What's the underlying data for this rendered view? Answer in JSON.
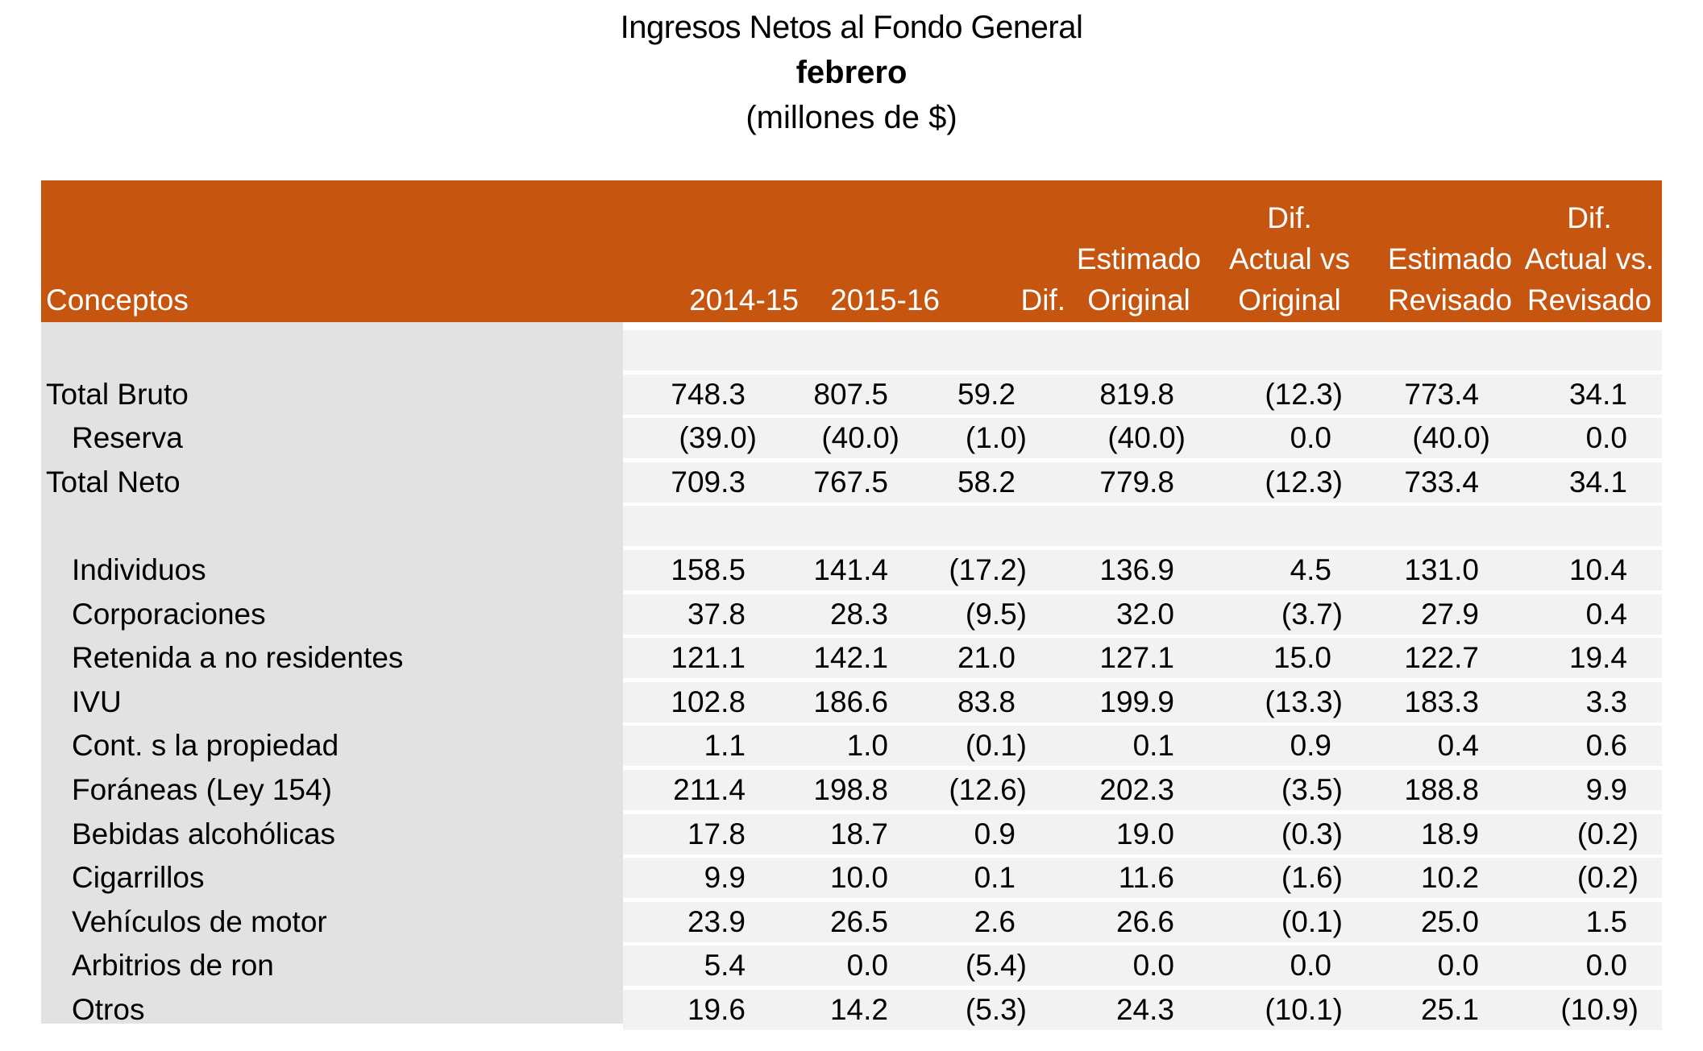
{
  "title": {
    "line1": "Ingresos Netos al Fondo General",
    "line2": "febrero",
    "line3": "(millones de $)"
  },
  "colors": {
    "header_bg": "#c5550f",
    "header_text": "#ffffff",
    "concept_bg": "#e2e2e2",
    "row_stripe": "#f2f2f2"
  },
  "columns": [
    "Conceptos",
    "2014-15",
    "2015-16",
    "Dif.",
    "Estimado\nOriginal",
    "Dif.\nActual vs\nOriginal",
    "Estimado\nRevisado",
    "Dif.\nActual vs.\nRevisado"
  ],
  "rows": [
    {
      "concepto": "",
      "values": [
        "",
        "",
        "",
        "",
        "",
        "",
        ""
      ]
    },
    {
      "concepto": "Total Bruto",
      "values": [
        "748.3",
        "807.5",
        "59.2",
        "819.8",
        "(12.3)",
        "773.4",
        "34.1"
      ]
    },
    {
      "concepto": "Reserva",
      "indent": true,
      "values": [
        "(39.0)",
        "(40.0)",
        "(1.0)",
        "(40.0)",
        "0.0",
        "(40.0)",
        "0.0"
      ]
    },
    {
      "concepto": "Total Neto",
      "values": [
        "709.3",
        "767.5",
        "58.2",
        "779.8",
        "(12.3)",
        "733.4",
        "34.1"
      ]
    },
    {
      "concepto": "",
      "values": [
        "",
        "",
        "",
        "",
        "",
        "",
        ""
      ]
    },
    {
      "concepto": "Individuos",
      "indent": true,
      "values": [
        "158.5",
        "141.4",
        "(17.2)",
        "136.9",
        "4.5",
        "131.0",
        "10.4"
      ]
    },
    {
      "concepto": "Corporaciones",
      "indent": true,
      "values": [
        "37.8",
        "28.3",
        "(9.5)",
        "32.0",
        "(3.7)",
        "27.9",
        "0.4"
      ]
    },
    {
      "concepto": "Retenida a no residentes",
      "indent": true,
      "values": [
        "121.1",
        "142.1",
        "21.0",
        "127.1",
        "15.0",
        "122.7",
        "19.4"
      ]
    },
    {
      "concepto": "IVU",
      "indent": true,
      "values": [
        "102.8",
        "186.6",
        "83.8",
        "199.9",
        "(13.3)",
        "183.3",
        "3.3"
      ]
    },
    {
      "concepto": "Cont. s la propiedad",
      "indent": true,
      "values": [
        "1.1",
        "1.0",
        "(0.1)",
        "0.1",
        "0.9",
        "0.4",
        "0.6"
      ]
    },
    {
      "concepto": "Foráneas (Ley 154)",
      "indent": true,
      "values": [
        "211.4",
        "198.8",
        "(12.6)",
        "202.3",
        "(3.5)",
        "188.8",
        "9.9"
      ]
    },
    {
      "concepto": "Bebidas alcohólicas",
      "indent": true,
      "values": [
        "17.8",
        "18.7",
        "0.9",
        "19.0",
        "(0.3)",
        "18.9",
        "(0.2)"
      ]
    },
    {
      "concepto": "Cigarrillos",
      "indent": true,
      "values": [
        "9.9",
        "10.0",
        "0.1",
        "11.6",
        "(1.6)",
        "10.2",
        "(0.2)"
      ]
    },
    {
      "concepto": "Vehículos de motor",
      "indent": true,
      "values": [
        "23.9",
        "26.5",
        "2.6",
        "26.6",
        "(0.1)",
        "25.0",
        "1.5"
      ]
    },
    {
      "concepto": "Arbitrios de ron",
      "indent": true,
      "values": [
        "5.4",
        "0.0",
        "(5.4)",
        "0.0",
        "0.0",
        "0.0",
        "0.0"
      ]
    },
    {
      "concepto": "Otros",
      "indent": true,
      "values": [
        "19.6",
        "14.2",
        "(5.3)",
        "24.3",
        "(10.1)",
        "25.1",
        "(10.9)"
      ]
    }
  ]
}
